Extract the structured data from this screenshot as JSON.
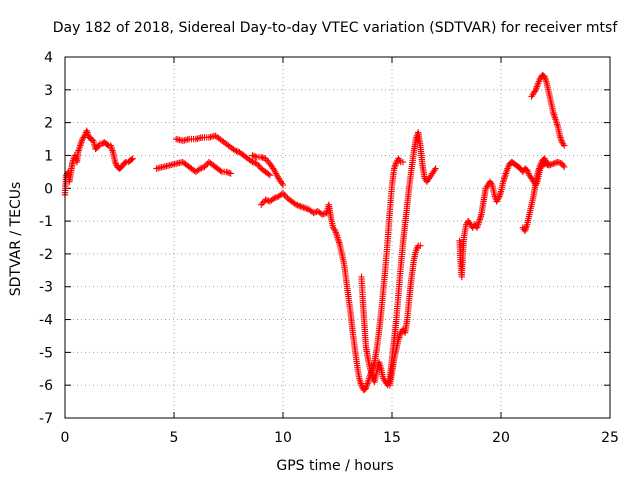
{
  "chart_data": {
    "type": "scatter",
    "title": "Day 182 of 2018, Sidereal Day-to-day VTEC variation (SDTVAR) for receiver mtsf",
    "xlabel": "GPS time / hours",
    "ylabel": "SDTVAR / TECUs",
    "xlim": [
      0,
      25
    ],
    "ylim": [
      -7,
      4
    ],
    "x_ticks": [
      "0",
      "5",
      "10",
      "15",
      "20",
      "25"
    ],
    "y_ticks": [
      "4",
      "3",
      "2",
      "1",
      "0",
      "-1",
      "-2",
      "-3",
      "-4",
      "-5",
      "-6",
      "-7"
    ],
    "grid": true,
    "marker": "+",
    "color": "#ff0000",
    "series": [
      {
        "segments": [
          [
            [
              0.0,
              -0.2
            ],
            [
              0.05,
              0.4
            ],
            [
              0.15,
              0.5
            ],
            [
              0.2,
              0.2
            ],
            [
              0.3,
              0.6
            ],
            [
              0.35,
              0.8
            ],
            [
              0.45,
              1.0
            ],
            [
              0.55,
              0.8
            ],
            [
              0.6,
              1.1
            ],
            [
              0.7,
              1.3
            ],
            [
              0.8,
              1.5
            ],
            [
              0.9,
              1.6
            ],
            [
              1.0,
              1.75
            ],
            [
              1.1,
              1.55
            ],
            [
              1.2,
              1.5
            ],
            [
              1.3,
              1.45
            ],
            [
              1.4,
              1.2
            ],
            [
              1.5,
              1.25
            ],
            [
              1.6,
              1.35
            ],
            [
              1.7,
              1.35
            ],
            [
              1.8,
              1.4
            ],
            [
              1.9,
              1.35
            ],
            [
              2.0,
              1.3
            ],
            [
              2.1,
              1.3
            ],
            [
              2.2,
              1.1
            ],
            [
              2.3,
              0.8
            ],
            [
              2.4,
              0.65
            ],
            [
              2.5,
              0.6
            ],
            [
              2.6,
              0.65
            ],
            [
              2.7,
              0.75
            ],
            [
              2.8,
              0.8
            ],
            [
              2.9,
              0.8
            ],
            [
              3.0,
              0.85
            ],
            [
              3.1,
              0.9
            ]
          ],
          [
            [
              4.2,
              0.6
            ],
            [
              4.5,
              0.65
            ],
            [
              4.8,
              0.7
            ],
            [
              5.1,
              0.75
            ],
            [
              5.4,
              0.8
            ],
            [
              5.6,
              0.7
            ],
            [
              5.8,
              0.6
            ],
            [
              6.0,
              0.5
            ],
            [
              6.2,
              0.6
            ],
            [
              6.4,
              0.65
            ],
            [
              6.6,
              0.8
            ],
            [
              6.8,
              0.7
            ],
            [
              7.0,
              0.6
            ],
            [
              7.2,
              0.5
            ],
            [
              7.4,
              0.5
            ],
            [
              7.6,
              0.45
            ]
          ],
          [
            [
              5.1,
              1.5
            ],
            [
              5.4,
              1.45
            ],
            [
              5.7,
              1.5
            ],
            [
              6.0,
              1.5
            ],
            [
              6.3,
              1.55
            ],
            [
              6.6,
              1.55
            ],
            [
              6.9,
              1.6
            ],
            [
              7.2,
              1.45
            ],
            [
              7.5,
              1.3
            ],
            [
              7.8,
              1.15
            ],
            [
              8.0,
              1.1
            ],
            [
              8.2,
              1.0
            ],
            [
              8.4,
              0.9
            ],
            [
              8.6,
              0.8
            ],
            [
              8.8,
              0.75
            ],
            [
              9.0,
              0.6
            ],
            [
              9.2,
              0.5
            ],
            [
              9.4,
              0.4
            ]
          ],
          [
            [
              8.6,
              1.0
            ],
            [
              8.8,
              0.95
            ],
            [
              9.0,
              0.95
            ],
            [
              9.2,
              0.9
            ],
            [
              9.4,
              0.75
            ],
            [
              9.6,
              0.55
            ],
            [
              9.8,
              0.3
            ],
            [
              10.0,
              0.1
            ]
          ],
          [
            [
              9.0,
              -0.5
            ],
            [
              9.2,
              -0.35
            ],
            [
              9.4,
              -0.4
            ],
            [
              9.6,
              -0.3
            ],
            [
              9.8,
              -0.25
            ],
            [
              10.0,
              -0.15
            ],
            [
              10.2,
              -0.3
            ],
            [
              10.4,
              -0.4
            ],
            [
              10.6,
              -0.5
            ],
            [
              10.8,
              -0.55
            ],
            [
              11.0,
              -0.6
            ],
            [
              11.2,
              -0.65
            ],
            [
              11.4,
              -0.75
            ],
            [
              11.6,
              -0.7
            ],
            [
              11.8,
              -0.8
            ],
            [
              12.0,
              -0.75
            ],
            [
              12.1,
              -0.5
            ],
            [
              12.2,
              -0.9
            ],
            [
              12.3,
              -1.2
            ],
            [
              12.4,
              -1.3
            ],
            [
              12.5,
              -1.5
            ],
            [
              12.6,
              -1.7
            ],
            [
              12.7,
              -2.0
            ],
            [
              12.8,
              -2.3
            ],
            [
              12.9,
              -2.8
            ],
            [
              13.0,
              -3.3
            ],
            [
              13.1,
              -3.8
            ],
            [
              13.2,
              -4.4
            ],
            [
              13.3,
              -4.9
            ],
            [
              13.4,
              -5.4
            ],
            [
              13.5,
              -5.8
            ],
            [
              13.6,
              -6.0
            ],
            [
              13.7,
              -6.15
            ],
            [
              13.8,
              -6.1
            ],
            [
              13.9,
              -5.9
            ],
            [
              14.0,
              -5.7
            ],
            [
              14.1,
              -5.5
            ],
            [
              14.2,
              -5.3
            ],
            [
              14.3,
              -4.9
            ],
            [
              14.4,
              -4.4
            ],
            [
              14.5,
              -3.8
            ],
            [
              14.6,
              -3.1
            ],
            [
              14.7,
              -2.4
            ],
            [
              14.8,
              -1.6
            ],
            [
              14.9,
              -0.7
            ],
            [
              15.0,
              0.1
            ],
            [
              15.1,
              0.6
            ],
            [
              15.2,
              0.8
            ],
            [
              15.3,
              0.9
            ],
            [
              15.4,
              0.8
            ],
            [
              15.5,
              0.8
            ]
          ],
          [
            [
              13.6,
              -2.7
            ],
            [
              13.65,
              -3.3
            ],
            [
              13.7,
              -3.8
            ],
            [
              13.75,
              -4.3
            ],
            [
              13.8,
              -4.8
            ],
            [
              13.9,
              -5.2
            ],
            [
              14.0,
              -5.5
            ],
            [
              14.1,
              -5.75
            ],
            [
              14.2,
              -5.9
            ],
            [
              14.3,
              -5.6
            ],
            [
              14.4,
              -5.3
            ],
            [
              14.5,
              -5.5
            ],
            [
              14.6,
              -5.8
            ],
            [
              14.7,
              -5.9
            ],
            [
              14.8,
              -6.0
            ],
            [
              14.9,
              -5.8
            ],
            [
              15.0,
              -5.2
            ],
            [
              15.1,
              -4.6
            ],
            [
              15.2,
              -4.0
            ],
            [
              15.3,
              -3.2
            ],
            [
              15.4,
              -2.4
            ],
            [
              15.5,
              -1.7
            ],
            [
              15.6,
              -1.1
            ],
            [
              15.7,
              -0.5
            ],
            [
              15.8,
              0.1
            ],
            [
              15.9,
              0.6
            ],
            [
              16.0,
              1.1
            ],
            [
              16.1,
              1.5
            ],
            [
              16.2,
              1.7
            ],
            [
              16.3,
              1.3
            ],
            [
              16.4,
              0.7
            ],
            [
              16.5,
              0.3
            ],
            [
              16.6,
              0.2
            ],
            [
              16.7,
              0.3
            ],
            [
              16.8,
              0.4
            ],
            [
              16.9,
              0.5
            ],
            [
              17.0,
              0.6
            ]
          ],
          [
            [
              14.9,
              -6.0
            ],
            [
              15.0,
              -5.6
            ],
            [
              15.1,
              -5.2
            ],
            [
              15.2,
              -4.9
            ],
            [
              15.3,
              -4.6
            ],
            [
              15.4,
              -4.4
            ],
            [
              15.5,
              -4.3
            ],
            [
              15.6,
              -4.4
            ],
            [
              15.7,
              -4.0
            ],
            [
              15.8,
              -3.3
            ],
            [
              15.9,
              -2.7
            ],
            [
              16.0,
              -2.2
            ],
            [
              16.1,
              -1.9
            ],
            [
              16.2,
              -1.75
            ],
            [
              16.3,
              -1.75
            ]
          ],
          [
            [
              18.1,
              -1.6
            ],
            [
              18.15,
              -2.3
            ],
            [
              18.2,
              -2.7
            ],
            [
              18.25,
              -2.0
            ],
            [
              18.3,
              -1.5
            ],
            [
              18.4,
              -1.1
            ],
            [
              18.5,
              -1.0
            ],
            [
              18.6,
              -1.1
            ],
            [
              18.7,
              -1.2
            ],
            [
              18.8,
              -1.1
            ],
            [
              18.9,
              -1.2
            ],
            [
              19.0,
              -1.0
            ],
            [
              19.1,
              -0.8
            ],
            [
              19.2,
              -0.4
            ],
            [
              19.3,
              0.0
            ],
            [
              19.4,
              0.1
            ],
            [
              19.5,
              0.2
            ],
            [
              19.6,
              0.1
            ],
            [
              19.7,
              -0.2
            ],
            [
              19.8,
              -0.4
            ],
            [
              19.9,
              -0.3
            ],
            [
              20.0,
              -0.1
            ],
            [
              20.1,
              0.2
            ],
            [
              20.2,
              0.4
            ],
            [
              20.3,
              0.6
            ],
            [
              20.4,
              0.75
            ],
            [
              20.5,
              0.8
            ],
            [
              20.6,
              0.75
            ],
            [
              20.7,
              0.7
            ],
            [
              20.8,
              0.65
            ],
            [
              20.9,
              0.6
            ],
            [
              21.0,
              0.5
            ],
            [
              21.1,
              0.6
            ],
            [
              21.2,
              0.55
            ],
            [
              21.3,
              0.4
            ],
            [
              21.4,
              0.3
            ],
            [
              21.5,
              0.2
            ],
            [
              21.6,
              0.1
            ],
            [
              21.7,
              0.3
            ],
            [
              21.8,
              0.6
            ],
            [
              21.9,
              0.7
            ],
            [
              22.0,
              0.75
            ],
            [
              22.2,
              0.7
            ],
            [
              22.4,
              0.75
            ],
            [
              22.6,
              0.8
            ],
            [
              22.8,
              0.75
            ],
            [
              22.9,
              0.65
            ]
          ],
          [
            [
              21.0,
              -1.2
            ],
            [
              21.1,
              -1.3
            ],
            [
              21.2,
              -1.1
            ],
            [
              21.3,
              -0.8
            ],
            [
              21.4,
              -0.5
            ],
            [
              21.5,
              -0.2
            ],
            [
              21.6,
              0.2
            ],
            [
              21.7,
              0.5
            ],
            [
              21.8,
              0.7
            ],
            [
              21.9,
              0.85
            ],
            [
              22.0,
              0.9
            ],
            [
              22.1,
              0.8
            ],
            [
              22.2,
              0.7
            ]
          ],
          [
            [
              21.4,
              2.8
            ],
            [
              21.5,
              2.9
            ],
            [
              21.6,
              3.0
            ],
            [
              21.7,
              3.2
            ],
            [
              21.8,
              3.35
            ],
            [
              21.9,
              3.45
            ],
            [
              22.0,
              3.4
            ],
            [
              22.1,
              3.2
            ],
            [
              22.2,
              2.9
            ],
            [
              22.3,
              2.6
            ],
            [
              22.4,
              2.3
            ],
            [
              22.5,
              2.1
            ],
            [
              22.6,
              1.9
            ],
            [
              22.7,
              1.6
            ],
            [
              22.8,
              1.4
            ],
            [
              22.9,
              1.3
            ]
          ]
        ]
      }
    ]
  }
}
